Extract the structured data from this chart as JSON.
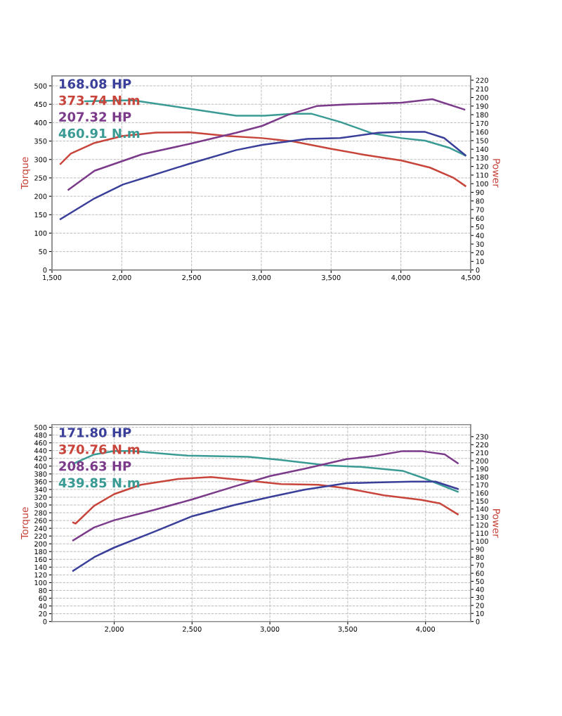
{
  "chart_data": [
    {
      "type": "line",
      "ylabel": "Torque",
      "y2label": "Power",
      "annotations": [
        "168.08 HP",
        "373.74 N.m",
        "207.32 HP",
        "460.91 N.m"
      ],
      "xlim": [
        1500,
        4500
      ],
      "xticks": [
        {
          "value": 1500,
          "label": "1,500"
        },
        {
          "value": 2000,
          "label": "2,000"
        },
        {
          "value": 2500,
          "label": "2,500"
        },
        {
          "value": 3000,
          "label": "3,000"
        },
        {
          "value": 3500,
          "label": "3,500"
        },
        {
          "value": 4000,
          "label": "4,000"
        },
        {
          "value": 4500,
          "label": "4,500"
        }
      ],
      "ylim": [
        0,
        527
      ],
      "yticks": [
        0,
        50,
        100,
        150,
        200,
        250,
        300,
        350,
        400,
        450,
        500
      ],
      "y2lim": [
        0,
        225
      ],
      "y2ticks": [
        0,
        10,
        20,
        30,
        40,
        50,
        60,
        70,
        80,
        90,
        100,
        110,
        120,
        130,
        140,
        150,
        160,
        170,
        180,
        190,
        200,
        210,
        220
      ],
      "grid": true,
      "series": [
        {
          "color": "#3a3f9a",
          "axis": "y2",
          "x": [
            1561,
            1805,
            2008,
            2482,
            2820,
            3006,
            3328,
            3565,
            3836,
            4005,
            4174,
            4310,
            4462
          ],
          "values": [
            59,
            83,
            99,
            123,
            139,
            145,
            152,
            153,
            159,
            160,
            160,
            153,
            133
          ]
        },
        {
          "color": "#c8453c",
          "axis": "y",
          "x": [
            1561,
            1635,
            1805,
            2008,
            2245,
            2482,
            2753,
            3006,
            3226,
            3497,
            3734,
            4005,
            4208,
            4378,
            4462
          ],
          "values": [
            288,
            316,
            345,
            364,
            373,
            374,
            364,
            358,
            349,
            329,
            313,
            297,
            278,
            250,
            228
          ]
        },
        {
          "color": "#7b3a8a",
          "axis": "y2",
          "x": [
            1618,
            1805,
            2143,
            2482,
            2820,
            3006,
            3193,
            3396,
            3633,
            4005,
            4225,
            4455
          ],
          "values": [
            93,
            115,
            134,
            146,
            159,
            167,
            180,
            190,
            192,
            194,
            198,
            186
          ]
        },
        {
          "color": "#3a9a94",
          "axis": "y",
          "x": [
            1737,
            2076,
            2482,
            2820,
            3023,
            3226,
            3362,
            3565,
            3802,
            4005,
            4174,
            4344,
            4462
          ],
          "values": [
            458,
            461,
            438,
            419,
            419,
            424,
            424,
            402,
            370,
            358,
            351,
            332,
            311
          ]
        }
      ]
    },
    {
      "type": "line",
      "ylabel": "Torque",
      "y2label": "Power",
      "annotations": [
        "171.80 HP",
        "370.76 N.m",
        "208.63 HP",
        "439.85 N.m"
      ],
      "xlim": [
        1600,
        4290
      ],
      "xticks": [
        {
          "value": 2000,
          "label": "2,000"
        },
        {
          "value": 2500,
          "label": "2,500"
        },
        {
          "value": 3000,
          "label": "3,000"
        },
        {
          "value": 3500,
          "label": "3,500"
        },
        {
          "value": 4000,
          "label": "4,000"
        }
      ],
      "ylim": [
        0,
        507
      ],
      "yticks": [
        0,
        20,
        40,
        60,
        80,
        100,
        120,
        140,
        160,
        180,
        200,
        220,
        240,
        260,
        280,
        300,
        320,
        340,
        360,
        380,
        400,
        420,
        440,
        460,
        480,
        500
      ],
      "y2lim": [
        0,
        245
      ],
      "y2ticks": [
        0,
        10,
        20,
        30,
        40,
        50,
        60,
        70,
        80,
        90,
        100,
        110,
        120,
        130,
        140,
        150,
        160,
        170,
        180,
        190,
        200,
        210,
        220,
        230
      ],
      "grid": true,
      "series": [
        {
          "color": "#3a3f9a",
          "axis": "y2",
          "x": [
            1736,
            1871,
            2000,
            2261,
            2501,
            2772,
            3003,
            3222,
            3492,
            3673,
            3913,
            4063,
            4207
          ],
          "values": [
            63,
            80,
            92,
            112,
            131,
            145,
            155,
            164,
            172,
            173,
            174,
            174,
            165
          ]
        },
        {
          "color": "#c8453c",
          "axis": "y",
          "x": [
            1736,
            1751,
            1871,
            2000,
            2171,
            2411,
            2622,
            2832,
            3072,
            3312,
            3492,
            3733,
            3973,
            4093,
            4207
          ],
          "values": [
            255,
            252,
            298,
            328,
            352,
            367,
            372,
            364,
            354,
            352,
            343,
            325,
            313,
            304,
            276
          ]
        },
        {
          "color": "#7b3a8a",
          "axis": "y2",
          "x": [
            1736,
            1871,
            2000,
            2261,
            2501,
            2772,
            3003,
            3222,
            3492,
            3673,
            3853,
            3973,
            4123,
            4207
          ],
          "values": [
            101,
            117,
            126,
            139,
            152,
            168,
            181,
            190,
            202,
            206,
            212,
            212,
            208,
            197
          ]
        },
        {
          "color": "#3a9a94",
          "axis": "y",
          "x": [
            1736,
            1871,
            2000,
            2111,
            2471,
            2862,
            3072,
            3372,
            3583,
            3853,
            4003,
            4207
          ],
          "values": [
            406,
            430,
            439,
            439,
            427,
            424,
            416,
            402,
            398,
            388,
            367,
            334
          ]
        }
      ]
    }
  ]
}
